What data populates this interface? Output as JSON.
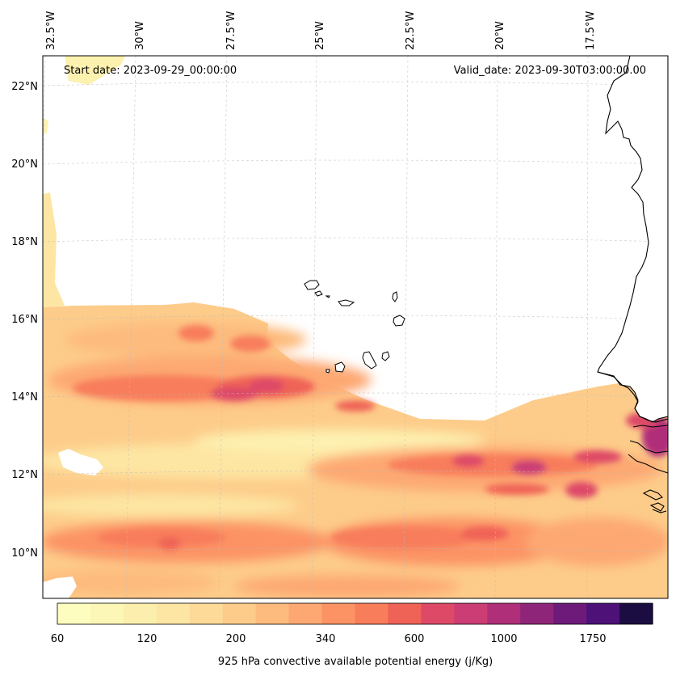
{
  "map": {
    "start_date": "Start date: 2023-09-29_00:00:00",
    "valid_date": "Valid_date: 2023-09-30T03:00:00.00",
    "lon_labels": [
      "32.5°W",
      "30°W",
      "27.5°W",
      "25°W",
      "22.5°W",
      "20°W",
      "17.5°W"
    ],
    "lat_labels": [
      "22°N",
      "20°N",
      "18°N",
      "16°N",
      "14°N",
      "12°N",
      "10°N"
    ],
    "colorbar": {
      "label": "925 hPa convective available potential energy (j/Kg)",
      "tick_labels": [
        "60",
        "120",
        "200",
        "340",
        "600",
        "1000",
        "1750"
      ],
      "colors": [
        "#fcfdbf",
        "#fcf6b7",
        "#fcefae",
        "#fde6a3",
        "#fdda98",
        "#fdcc8a",
        "#fdbb7d",
        "#fda872",
        "#fc9365",
        "#f87d5b",
        "#ef6356",
        "#de4968",
        "#cb3d74",
        "#b02f79",
        "#8f2579",
        "#6e1a7a",
        "#4d1178",
        "#1b0c41"
      ]
    },
    "land_color": "#ffffff",
    "coastline_color": "#000000"
  }
}
